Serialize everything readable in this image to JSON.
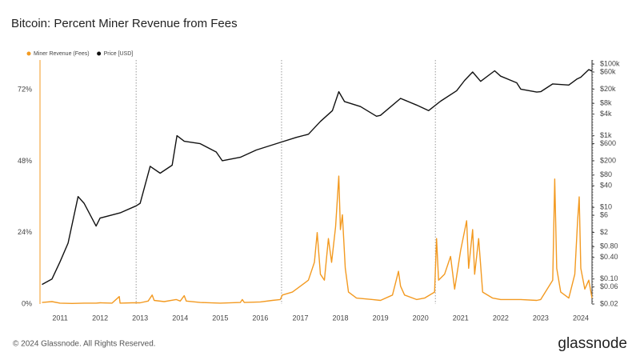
{
  "chart_data": {
    "type": "line",
    "title": "Bitcoin: Percent Miner Revenue from Fees",
    "copyright": "© 2024 Glassnode. All Rights Reserved.",
    "brand": "glassnode",
    "legend": "top-left",
    "xlim": [
      2010.5,
      2024.28
    ],
    "xticks": [
      2011,
      2012,
      2013,
      2014,
      2015,
      2016,
      2017,
      2018,
      2019,
      2020,
      2021,
      2022,
      2023,
      2024
    ],
    "ylim": [
      0,
      82
    ],
    "yticks": [
      {
        "value": 0,
        "label": "0%"
      },
      {
        "value": 24,
        "label": "24%"
      },
      {
        "value": 48,
        "label": "48%"
      },
      {
        "value": 72,
        "label": "72%"
      }
    ],
    "y2lim": [
      0.02,
      130000
    ],
    "y2scale": "log",
    "y2ticks": [
      {
        "value": 0.02,
        "label": "$0.02"
      },
      {
        "value": 0.06,
        "label": "$0.06"
      },
      {
        "value": 0.1,
        "label": "$0.10"
      },
      {
        "value": 0.4,
        "label": "$0.40"
      },
      {
        "value": 0.8,
        "label": "$0.80"
      },
      {
        "value": 2,
        "label": "$2"
      },
      {
        "value": 6,
        "label": "$6"
      },
      {
        "value": 10,
        "label": "$10"
      },
      {
        "value": 40,
        "label": "$40"
      },
      {
        "value": 80,
        "label": "$80"
      },
      {
        "value": 200,
        "label": "$200"
      },
      {
        "value": 600,
        "label": "$600"
      },
      {
        "value": 1000,
        "label": "$1k"
      },
      {
        "value": 4000,
        "label": "$4k"
      },
      {
        "value": 8000,
        "label": "$8k"
      },
      {
        "value": 20000,
        "label": "$20k"
      },
      {
        "value": 60000,
        "label": "$60k"
      },
      {
        "value": 100000,
        "label": "$100k"
      }
    ],
    "vlines": [
      2012.9,
      2016.53,
      2020.37,
      2024.3
    ],
    "series": [
      {
        "name": "Miner Revenue (Fees)",
        "color": "#f39a21",
        "x": [
          2010.55,
          2010.8,
          2011.0,
          2011.3,
          2011.6,
          2011.9,
          2012.0,
          2012.3,
          2012.48,
          2012.5,
          2012.8,
          2013.0,
          2013.2,
          2013.3,
          2013.35,
          2013.6,
          2013.9,
          2014.0,
          2014.1,
          2014.15,
          2014.5,
          2015.0,
          2015.5,
          2015.55,
          2015.6,
          2016.0,
          2016.3,
          2016.5,
          2016.55,
          2016.8,
          2017.0,
          2017.2,
          2017.35,
          2017.42,
          2017.5,
          2017.6,
          2017.7,
          2017.78,
          2017.88,
          2017.96,
          2018.0,
          2018.05,
          2018.12,
          2018.2,
          2018.4,
          2018.8,
          2019.0,
          2019.3,
          2019.45,
          2019.5,
          2019.6,
          2019.9,
          2020.1,
          2020.35,
          2020.4,
          2020.45,
          2020.6,
          2020.75,
          2020.85,
          2021.0,
          2021.15,
          2021.2,
          2021.3,
          2021.35,
          2021.45,
          2021.55,
          2021.8,
          2022.0,
          2022.5,
          2022.9,
          2023.0,
          2023.3,
          2023.35,
          2023.4,
          2023.5,
          2023.7,
          2023.85,
          2023.92,
          2023.96,
          2024.0,
          2024.1,
          2024.2,
          2024.28
        ],
        "values": [
          0.5,
          0.8,
          0.3,
          0.2,
          0.3,
          0.3,
          0.4,
          0.3,
          2.5,
          0.3,
          0.4,
          0.4,
          1.0,
          3,
          1.2,
          0.8,
          1.5,
          1.0,
          2.8,
          1,
          0.5,
          0.3,
          0.5,
          1.5,
          0.5,
          0.7,
          1.2,
          1.5,
          3,
          4,
          6,
          8,
          14,
          24,
          10,
          8,
          22,
          14,
          26,
          43,
          25,
          30,
          12,
          4,
          2,
          1.5,
          1.2,
          3,
          11,
          6,
          3,
          1.5,
          2,
          4,
          22,
          8,
          10,
          16,
          5,
          18,
          28,
          12,
          25,
          10,
          22,
          4,
          2,
          1.5,
          1.5,
          1.2,
          1.5,
          8,
          42,
          12,
          4,
          2,
          10,
          28,
          36,
          12,
          5,
          8,
          2
        ]
      },
      {
        "name": "Price [USD]",
        "color": "#111111",
        "axis": "y2",
        "x": [
          2010.55,
          2010.8,
          2011.0,
          2011.2,
          2011.45,
          2011.6,
          2011.9,
          2012.0,
          2012.5,
          2012.9,
          2013.0,
          2013.25,
          2013.5,
          2013.8,
          2013.92,
          2014.1,
          2014.5,
          2014.9,
          2015.05,
          2015.5,
          2015.9,
          2016.5,
          2016.9,
          2017.2,
          2017.5,
          2017.8,
          2017.96,
          2018.1,
          2018.5,
          2018.9,
          2019.0,
          2019.5,
          2019.9,
          2020.2,
          2020.5,
          2020.9,
          2021.1,
          2021.3,
          2021.5,
          2021.85,
          2022.0,
          2022.4,
          2022.5,
          2022.9,
          2023.0,
          2023.3,
          2023.7,
          2023.9,
          2024.0,
          2024.2,
          2024.28
        ],
        "values": [
          0.07,
          0.1,
          0.3,
          1,
          20,
          13,
          3,
          5,
          7,
          11,
          13,
          140,
          90,
          150,
          1000,
          700,
          600,
          350,
          200,
          250,
          400,
          650,
          900,
          1100,
          2500,
          5000,
          17000,
          9000,
          6500,
          3500,
          3700,
          11000,
          7200,
          5000,
          9200,
          18000,
          35000,
          60000,
          33000,
          65000,
          46000,
          30000,
          20000,
          16500,
          17000,
          28000,
          26000,
          38000,
          43000,
          70000,
          64000
        ]
      }
    ]
  }
}
